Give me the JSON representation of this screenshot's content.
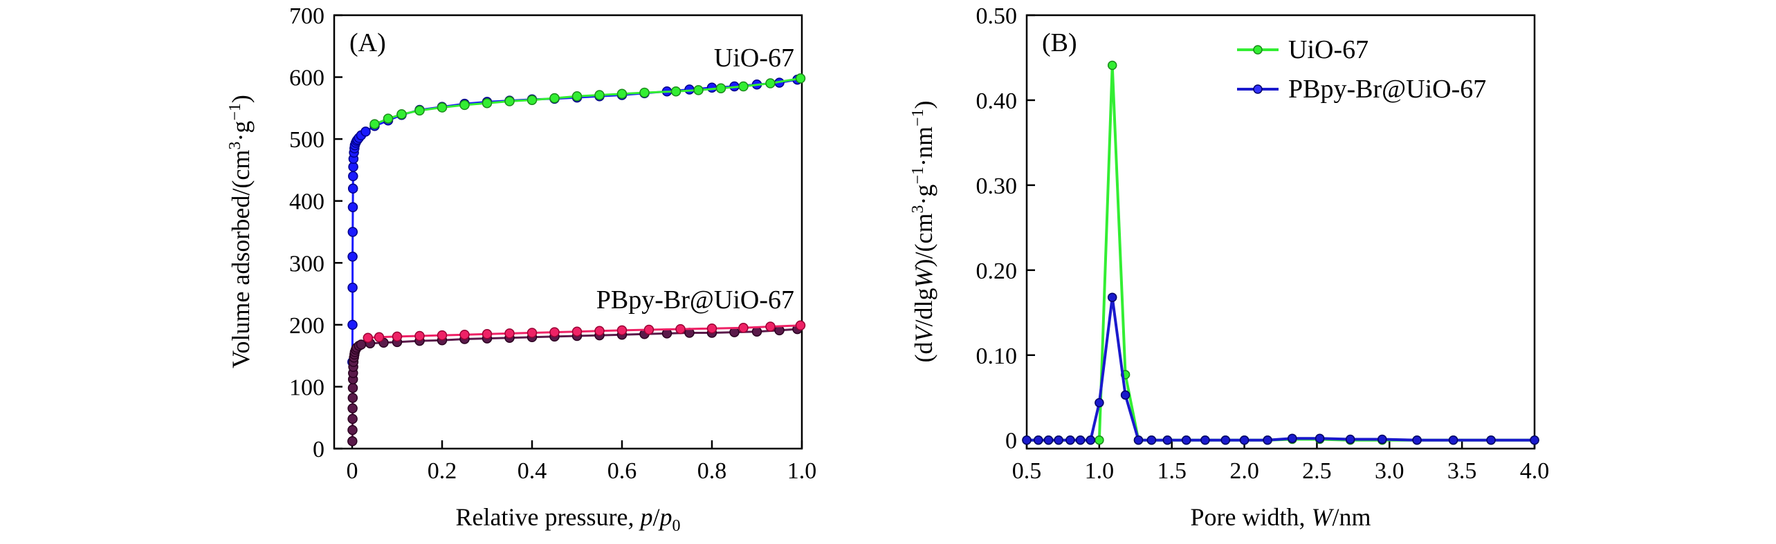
{
  "chart_data": [
    {
      "type": "line",
      "panel_label": "(A)",
      "xlabel": "Relative pressure, p/p0",
      "xlabel_parts": {
        "text": "Relative pressure, ",
        "var_p": "p",
        "slash": "/",
        "var_p0": "p",
        "sub0": "0"
      },
      "ylabel": "Volume adsorbed/(cm³·g⁻¹)",
      "ylabel_parts": {
        "text": "Volume adsorbed/(cm",
        "sup3": "3",
        "mid": "·g",
        "supm1": "−1",
        "close": ")"
      },
      "xlim": [
        -0.04,
        1.0
      ],
      "ylim": [
        0,
        700
      ],
      "x_ticks": [
        0,
        0.2,
        0.4,
        0.6,
        0.8,
        1.0
      ],
      "x_tick_labels": [
        "0",
        "0.2",
        "0.4",
        "0.6",
        "0.8",
        "1.0"
      ],
      "y_ticks": [
        0,
        100,
        200,
        300,
        400,
        500,
        600,
        700
      ],
      "y_tick_labels": [
        "0",
        "100",
        "200",
        "300",
        "400",
        "500",
        "600",
        "700"
      ],
      "annotations": [
        "UiO-67",
        "PBpy-Br@UiO-67"
      ],
      "series": [
        {
          "name": "UiO-67 (adsorption)",
          "color": "#1a1aff",
          "points": [
            [
              0.0005,
              140
            ],
            [
              0.0007,
              200
            ],
            [
              0.0009,
              260
            ],
            [
              0.001,
              310
            ],
            [
              0.0012,
              350
            ],
            [
              0.0015,
              390
            ],
            [
              0.0018,
              420
            ],
            [
              0.002,
              440
            ],
            [
              0.0025,
              455
            ],
            [
              0.003,
              468
            ],
            [
              0.004,
              478
            ],
            [
              0.005,
              485
            ],
            [
              0.006,
              490
            ],
            [
              0.008,
              494
            ],
            [
              0.01,
              497
            ],
            [
              0.012,
              499
            ],
            [
              0.015,
              502
            ],
            [
              0.02,
              506
            ],
            [
              0.03,
              512
            ],
            [
              0.05,
              521
            ],
            [
              0.08,
              530
            ],
            [
              0.11,
              539
            ],
            [
              0.15,
              547
            ],
            [
              0.2,
              552
            ],
            [
              0.25,
              557
            ],
            [
              0.3,
              560
            ],
            [
              0.35,
              562
            ],
            [
              0.4,
              564
            ],
            [
              0.45,
              565
            ],
            [
              0.5,
              567
            ],
            [
              0.55,
              569
            ],
            [
              0.6,
              571
            ],
            [
              0.65,
              574
            ],
            [
              0.7,
              577
            ],
            [
              0.75,
              580
            ],
            [
              0.8,
              583
            ],
            [
              0.85,
              585
            ],
            [
              0.9,
              588
            ],
            [
              0.95,
              591
            ],
            [
              0.99,
              596
            ]
          ]
        },
        {
          "name": "UiO-67 (desorption)",
          "color": "#33ee33",
          "points": [
            [
              0.997,
              598
            ],
            [
              0.93,
              590
            ],
            [
              0.87,
              585
            ],
            [
              0.82,
              582
            ],
            [
              0.77,
              579
            ],
            [
              0.72,
              577
            ],
            [
              0.65,
              575
            ],
            [
              0.6,
              573
            ],
            [
              0.55,
              571
            ],
            [
              0.5,
              569
            ],
            [
              0.45,
              566
            ],
            [
              0.4,
              563
            ],
            [
              0.35,
              561
            ],
            [
              0.3,
              558
            ],
            [
              0.25,
              555
            ],
            [
              0.2,
              551
            ],
            [
              0.15,
              546
            ],
            [
              0.11,
              540
            ],
            [
              0.08,
              533
            ],
            [
              0.05,
              524
            ]
          ]
        },
        {
          "name": "PBpy-Br@UiO-67 (adsorption)",
          "color": "#5a1a4a",
          "points": [
            [
              0.0005,
              12
            ],
            [
              0.0007,
              30
            ],
            [
              0.0009,
              48
            ],
            [
              0.001,
              65
            ],
            [
              0.0012,
              82
            ],
            [
              0.0015,
              98
            ],
            [
              0.0018,
              112
            ],
            [
              0.002,
              122
            ],
            [
              0.0025,
              132
            ],
            [
              0.003,
              140
            ],
            [
              0.004,
              147
            ],
            [
              0.005,
              152
            ],
            [
              0.006,
              156
            ],
            [
              0.008,
              160
            ],
            [
              0.01,
              163
            ],
            [
              0.015,
              166
            ],
            [
              0.02,
              168
            ],
            [
              0.04,
              170
            ],
            [
              0.07,
              171
            ],
            [
              0.1,
              172
            ],
            [
              0.15,
              174
            ],
            [
              0.2,
              175
            ],
            [
              0.25,
              177
            ],
            [
              0.3,
              178
            ],
            [
              0.35,
              179
            ],
            [
              0.4,
              180
            ],
            [
              0.45,
              181
            ],
            [
              0.5,
              182
            ],
            [
              0.55,
              183
            ],
            [
              0.6,
              184
            ],
            [
              0.65,
              185
            ],
            [
              0.7,
              186
            ],
            [
              0.75,
              187
            ],
            [
              0.8,
              187
            ],
            [
              0.85,
              188
            ],
            [
              0.9,
              189
            ],
            [
              0.95,
              191
            ],
            [
              0.99,
              193
            ]
          ]
        },
        {
          "name": "PBpy-Br@UiO-67 (desorption)",
          "color": "#ee2266",
          "points": [
            [
              0.997,
              199
            ],
            [
              0.93,
              197
            ],
            [
              0.87,
              195
            ],
            [
              0.8,
              194
            ],
            [
              0.73,
              193
            ],
            [
              0.66,
              192
            ],
            [
              0.6,
              191
            ],
            [
              0.55,
              190
            ],
            [
              0.5,
              189
            ],
            [
              0.45,
              188
            ],
            [
              0.4,
              187
            ],
            [
              0.35,
              186
            ],
            [
              0.3,
              185
            ],
            [
              0.25,
              184
            ],
            [
              0.2,
              183
            ],
            [
              0.15,
              182
            ],
            [
              0.1,
              181
            ],
            [
              0.06,
              180
            ],
            [
              0.035,
              179
            ]
          ]
        }
      ]
    },
    {
      "type": "line",
      "panel_label": "(B)",
      "xlabel": "Pore width, W/nm",
      "xlabel_parts": {
        "text": "Pore width, ",
        "var_w": "W",
        "unit": "/nm"
      },
      "ylabel": "(dV/dlgW)/(cm³·g⁻¹·nm⁻¹)",
      "ylabel_parts": {
        "open": "(d",
        "var_v": "V",
        "mid": "/dlg",
        "var_w": "W",
        "close1": ")/(cm",
        "sup3": "3",
        "g": "·g",
        "supm1a": "−1",
        "nm": "·nm",
        "supm1b": "−1",
        "close2": ")"
      },
      "xlim": [
        0.5,
        4.0
      ],
      "ylim": [
        -0.01,
        0.5
      ],
      "x_ticks": [
        0.5,
        1.0,
        1.5,
        2.0,
        2.5,
        3.0,
        3.5,
        4.0
      ],
      "x_tick_labels": [
        "0.5",
        "1.0",
        "1.5",
        "2.0",
        "2.5",
        "3.0",
        "3.5",
        "4.0"
      ],
      "y_ticks": [
        0,
        0.1,
        0.2,
        0.3,
        0.4,
        0.5
      ],
      "y_tick_labels": [
        "0",
        "0.10",
        "0.20",
        "0.30",
        "0.40",
        "0.50"
      ],
      "legend_position": "top-right",
      "legend": [
        "UiO-67",
        "PBpy-Br@UiO-67"
      ],
      "series": [
        {
          "name": "UiO-67",
          "color": "#33ee33",
          "points": [
            [
              0.5,
              0
            ],
            [
              0.58,
              0
            ],
            [
              0.65,
              0
            ],
            [
              0.72,
              0
            ],
            [
              0.8,
              0
            ],
            [
              0.87,
              0
            ],
            [
              0.94,
              0
            ],
            [
              1.0,
              0
            ],
            [
              1.09,
              0.441
            ],
            [
              1.18,
              0.077
            ],
            [
              1.27,
              0
            ],
            [
              1.36,
              0
            ],
            [
              1.47,
              0
            ],
            [
              1.6,
              0
            ],
            [
              1.73,
              0
            ],
            [
              1.87,
              0
            ],
            [
              2.0,
              0
            ],
            [
              2.16,
              0
            ],
            [
              2.33,
              0.001
            ],
            [
              2.52,
              0.001
            ],
            [
              2.73,
              0
            ],
            [
              2.95,
              0
            ],
            [
              3.19,
              0
            ],
            [
              3.44,
              0
            ],
            [
              3.7,
              0
            ],
            [
              4.0,
              0
            ]
          ]
        },
        {
          "name": "PBpy-Br@UiO-67",
          "color": "#1a1acc",
          "points": [
            [
              0.5,
              0
            ],
            [
              0.58,
              0
            ],
            [
              0.65,
              0
            ],
            [
              0.72,
              0
            ],
            [
              0.8,
              0
            ],
            [
              0.87,
              0
            ],
            [
              0.94,
              0
            ],
            [
              1.0,
              0.044
            ],
            [
              1.09,
              0.168
            ],
            [
              1.18,
              0.053
            ],
            [
              1.27,
              0
            ],
            [
              1.36,
              0
            ],
            [
              1.47,
              0
            ],
            [
              1.6,
              0
            ],
            [
              1.73,
              0
            ],
            [
              1.87,
              0
            ],
            [
              2.0,
              0
            ],
            [
              2.16,
              0
            ],
            [
              2.33,
              0.002
            ],
            [
              2.52,
              0.002
            ],
            [
              2.73,
              0.001
            ],
            [
              2.95,
              0.001
            ],
            [
              3.19,
              0
            ],
            [
              3.44,
              0
            ],
            [
              3.7,
              0
            ],
            [
              4.0,
              0
            ]
          ]
        }
      ]
    }
  ]
}
